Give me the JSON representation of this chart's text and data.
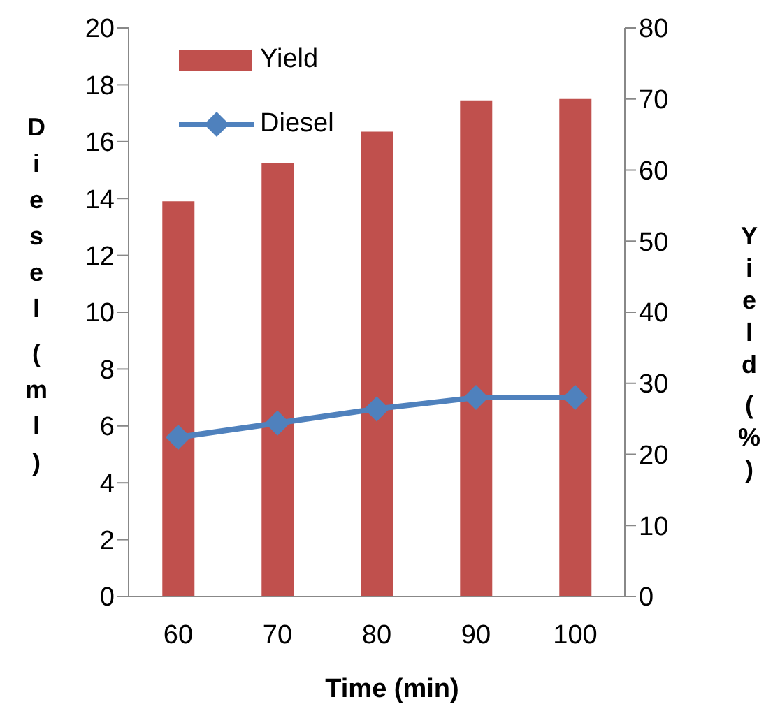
{
  "chart_data": {
    "type": "bar",
    "xlabel": "Time (min)",
    "ylabel": "Diesel (ml)",
    "y2label": "Yield (%)",
    "categories": [
      "60",
      "70",
      "80",
      "90",
      "100"
    ],
    "series": [
      {
        "name": "Yield",
        "axis": "y2",
        "color": "#c0504d",
        "values": [
          55.6,
          61,
          65.4,
          69.8,
          70
        ]
      },
      {
        "name": "Diesel",
        "type": "line",
        "axis": "y",
        "color": "#4f81bd",
        "values": [
          5.6,
          6.1,
          6.6,
          7,
          7
        ]
      }
    ],
    "ylim": [
      0,
      20
    ],
    "yticks": [
      0,
      2,
      4,
      6,
      8,
      10,
      12,
      14,
      16,
      18,
      20
    ],
    "y2lim": [
      0,
      80
    ],
    "y2ticks": [
      0,
      10,
      20,
      30,
      40,
      50,
      60,
      70,
      80
    ],
    "legend": "top left",
    "marker": "diamond",
    "grid": false
  }
}
